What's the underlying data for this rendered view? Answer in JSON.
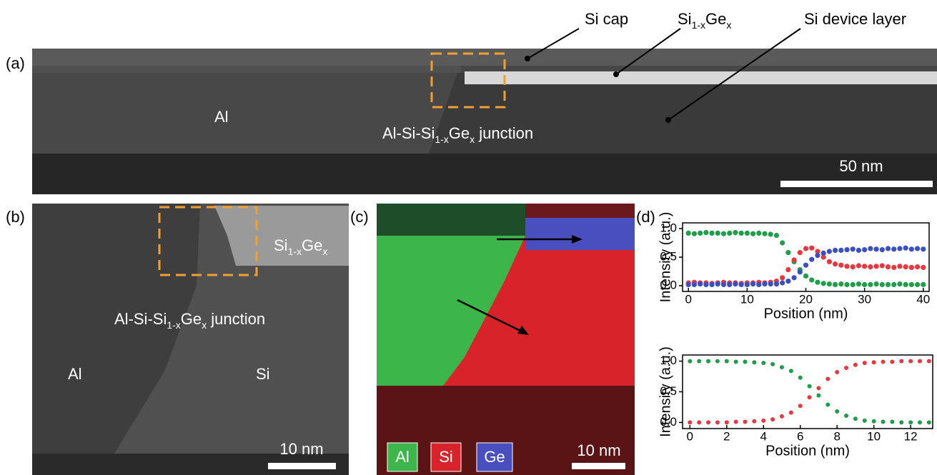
{
  "figure": {
    "a": {
      "label": "(a)",
      "si_cap": "Si cap",
      "sige": [
        {
          "text": "Si"
        },
        {
          "text": "1-x",
          "sub": true
        },
        {
          "text": "Ge"
        },
        {
          "text": "x",
          "sub": true
        }
      ],
      "si_device": "Si device layer",
      "al": "Al",
      "junction": [
        {
          "text": "Al-Si-Si"
        },
        {
          "text": "1-x",
          "sub": true
        },
        {
          "text": "Ge"
        },
        {
          "text": "x",
          "sub": true
        },
        {
          "text": " junction"
        }
      ],
      "scale_bar": "50 nm"
    },
    "b": {
      "label": "(b)",
      "sige": [
        {
          "text": "Si"
        },
        {
          "text": "1-x",
          "sub": true
        },
        {
          "text": "Ge"
        },
        {
          "text": "x",
          "sub": true
        }
      ],
      "junction": [
        {
          "text": "Al-Si-Si"
        },
        {
          "text": "1-x",
          "sub": true
        },
        {
          "text": "Ge"
        },
        {
          "text": "x",
          "sub": true
        },
        {
          "text": " junction"
        }
      ],
      "al": "Al",
      "si": "Si",
      "scale_bar": "10 nm"
    },
    "c": {
      "label": "(c)",
      "legend": [
        {
          "name": "Al",
          "color": "#3cb54a"
        },
        {
          "name": "Si",
          "color": "#d8232a"
        },
        {
          "name": "Ge",
          "color": "#4a4fbf"
        }
      ],
      "scale_bar": "10 nm"
    },
    "d": {
      "label": "(d)"
    }
  },
  "chart_data": [
    {
      "type": "scatter",
      "xlabel": "Position (nm)",
      "ylabel": "Intensity (a.u.)",
      "xlim": [
        -1,
        41
      ],
      "ylim": [
        -0.1,
        1.1
      ],
      "xticks": [
        0,
        10,
        20,
        30,
        40
      ],
      "yticks": [
        {
          "value": 0,
          "label": "0.0"
        },
        {
          "value": 0.5,
          "label": "0.5"
        },
        {
          "value": 1,
          "label": "1.0"
        }
      ],
      "x": [
        0,
        1,
        2,
        3,
        4,
        5,
        6,
        7,
        8,
        9,
        10,
        11,
        12,
        13,
        14,
        15,
        16,
        17,
        18,
        19,
        20,
        21,
        22,
        23,
        24,
        25,
        26,
        27,
        28,
        29,
        30,
        31,
        32,
        33,
        34,
        35,
        36,
        37,
        38,
        39,
        40
      ],
      "series": [
        {
          "color": "#1f9e4a",
          "values": [
            0.92,
            0.91,
            0.92,
            0.93,
            0.92,
            0.92,
            0.91,
            0.92,
            0.93,
            0.92,
            0.92,
            0.91,
            0.92,
            0.91,
            0.9,
            0.88,
            0.75,
            0.58,
            0.42,
            0.28,
            0.17,
            0.1,
            0.06,
            0.04,
            0.03,
            0.02,
            0.03,
            0.02,
            0.02,
            0.03,
            0.02,
            0.02,
            0.03,
            0.02,
            0.02,
            0.02,
            0.03,
            0.02,
            0.02,
            0.02,
            0.02
          ]
        },
        {
          "color": "#e8383d",
          "values": [
            0.05,
            0.06,
            0.05,
            0.05,
            0.04,
            0.05,
            0.06,
            0.05,
            0.05,
            0.04,
            0.05,
            0.05,
            0.06,
            0.05,
            0.06,
            0.08,
            0.14,
            0.28,
            0.45,
            0.58,
            0.65,
            0.66,
            0.6,
            0.5,
            0.42,
            0.38,
            0.36,
            0.34,
            0.33,
            0.35,
            0.34,
            0.33,
            0.34,
            0.35,
            0.33,
            0.32,
            0.34,
            0.33,
            0.32,
            0.33,
            0.32
          ]
        },
        {
          "color": "#3a4fc4",
          "values": [
            0.02,
            0.02,
            0.03,
            0.02,
            0.02,
            0.03,
            0.02,
            0.02,
            0.03,
            0.02,
            0.02,
            0.03,
            0.02,
            0.03,
            0.03,
            0.03,
            0.05,
            0.08,
            0.14,
            0.24,
            0.36,
            0.46,
            0.53,
            0.57,
            0.6,
            0.62,
            0.62,
            0.63,
            0.64,
            0.62,
            0.63,
            0.65,
            0.64,
            0.63,
            0.65,
            0.64,
            0.65,
            0.66,
            0.64,
            0.65,
            0.64
          ]
        }
      ]
    },
    {
      "type": "scatter",
      "xlabel": "Position (nm)",
      "ylabel": "Intensity (a.u.)",
      "xlim": [
        -0.4,
        13.2
      ],
      "ylim": [
        -0.1,
        1.1
      ],
      "xticks": [
        0,
        2,
        4,
        6,
        8,
        10,
        12
      ],
      "yticks": [
        {
          "value": 0,
          "label": "0.0"
        },
        {
          "value": 0.5,
          "label": "0.5"
        },
        {
          "value": 1,
          "label": "1.0"
        }
      ],
      "x": [
        0,
        0.5,
        1,
        1.5,
        2,
        2.5,
        3,
        3.5,
        4,
        4.5,
        5,
        5.5,
        6,
        6.5,
        7,
        7.5,
        8,
        8.5,
        9,
        9.5,
        10,
        10.5,
        11,
        11.5,
        12,
        12.5,
        13
      ],
      "series": [
        {
          "color": "#1f9e4a",
          "values": [
            1.0,
            1.0,
            1.0,
            1.0,
            1.0,
            0.99,
            0.99,
            0.98,
            0.97,
            0.95,
            0.9,
            0.84,
            0.73,
            0.59,
            0.44,
            0.29,
            0.18,
            0.11,
            0.06,
            0.03,
            0.02,
            0.01,
            0.01,
            0.0,
            0.0,
            0.0,
            0.0
          ]
        },
        {
          "color": "#e8383d",
          "values": [
            0.0,
            0.0,
            0.0,
            0.0,
            0.0,
            0.01,
            0.01,
            0.02,
            0.03,
            0.05,
            0.1,
            0.16,
            0.27,
            0.41,
            0.56,
            0.71,
            0.82,
            0.89,
            0.94,
            0.97,
            0.98,
            0.99,
            0.99,
            1.0,
            1.0,
            1.0,
            1.0
          ]
        }
      ]
    }
  ]
}
